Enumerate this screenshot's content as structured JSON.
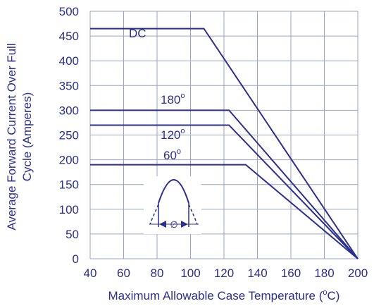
{
  "theme": {
    "text_color": "#2b2f8f",
    "line_color": "#2b2f8f",
    "grid_color": "#9aa3c8",
    "background": "#ffffff"
  },
  "chart_data": {
    "type": "line",
    "title": "",
    "xlabel": "Maximum Allowable Case Temperature (°C)",
    "xlabel_parts": [
      "Maximum Allowable Case Temperature (",
      "o",
      "C)"
    ],
    "ylabel_lines": [
      "Average Forward Current Over Full",
      "Cycle (Amperes)"
    ],
    "xlim": [
      40,
      200
    ],
    "ylim": [
      0,
      500
    ],
    "x_grid": [
      40,
      60,
      80,
      100,
      120,
      140,
      160,
      180,
      200
    ],
    "x_tick_labels": [
      "40",
      "60",
      "80",
      "100",
      "120",
      "140",
      "160",
      "180",
      "200"
    ],
    "y_grid": [
      0,
      50,
      100,
      150,
      200,
      250,
      300,
      350,
      400,
      450,
      500
    ],
    "y_tick_labels": [
      "0",
      "50",
      "100",
      "150",
      "200",
      "250",
      "300",
      "350",
      "400",
      "450",
      "500"
    ],
    "grid": true,
    "series": [
      {
        "name": "DC",
        "label": "DC",
        "superscript": "",
        "points": [
          [
            40,
            465
          ],
          [
            108,
            465
          ],
          [
            200,
            0
          ]
        ]
      },
      {
        "name": "180°",
        "label": "180",
        "superscript": "o",
        "points": [
          [
            40,
            300
          ],
          [
            123,
            300
          ],
          [
            200,
            0
          ]
        ]
      },
      {
        "name": "120°",
        "label": "120",
        "superscript": "o",
        "points": [
          [
            40,
            270
          ],
          [
            123,
            270
          ],
          [
            200,
            0
          ]
        ]
      },
      {
        "name": "60°",
        "label": "60",
        "superscript": "o",
        "points": [
          [
            40,
            190
          ],
          [
            133,
            190
          ],
          [
            200,
            0
          ]
        ]
      }
    ],
    "inset": {
      "description": "half-sine conduction waveform",
      "angle_symbol": "∅"
    }
  }
}
